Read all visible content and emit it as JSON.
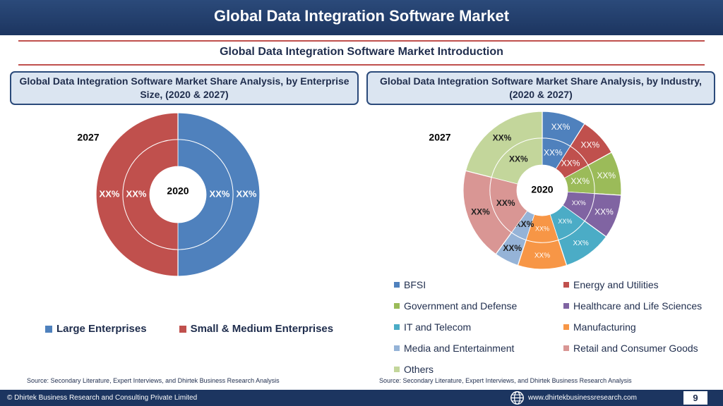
{
  "header": {
    "title": "Global Data Integration Software Market"
  },
  "subtitle": "Global Data Integration Software Market  Introduction",
  "left_box": {
    "title": "Global Data Integration Software Market  Share Analysis, by Enterprise Size, (2020 & 2027)"
  },
  "right_box": {
    "title": "Global Data Integration Software Market  Share Analysis, by Industry, (2020 & 2027)"
  },
  "chart_data": [
    {
      "type": "pie",
      "variant": "double-donut",
      "outer_ring": "2027",
      "inner_ring": "2020",
      "outer_label": "2027",
      "center_label": "2020",
      "categories": [
        "Large Enterprises",
        "Small & Medium Enterprises"
      ],
      "colors": [
        "#4f81bd",
        "#c0504d"
      ],
      "series": [
        {
          "values": [
            50,
            50
          ],
          "labels": [
            "XX%",
            "XX%"
          ]
        },
        {
          "values": [
            50,
            50
          ],
          "labels": [
            "XX%",
            "XX%"
          ]
        }
      ],
      "legend_position": "bottom"
    },
    {
      "type": "pie",
      "variant": "double-donut",
      "outer_ring": "2027",
      "inner_ring": "2020",
      "outer_label": "2027",
      "center_label": "2020",
      "categories": [
        "BFSI",
        "Energy and Utilities",
        "Government and Defense",
        "Healthcare and Life Sciences",
        "IT and Telecom",
        "Manufacturing",
        "Media and Entertainment",
        "Retail and Consumer Goods",
        "Others"
      ],
      "colors": [
        "#4f81bd",
        "#c0504d",
        "#9bbb59",
        "#8064a2",
        "#4bacc6",
        "#f79646",
        "#95b3d7",
        "#d99694",
        "#c3d69b"
      ],
      "series": [
        {
          "values": [
            9,
            8,
            9,
            9,
            10,
            10,
            5,
            19,
            21
          ],
          "labels": [
            "XX%",
            "XX%",
            "XX%",
            "XX%",
            "XX%",
            "XX%",
            "XX%",
            "XX%",
            "XX%"
          ]
        },
        {
          "values": [
            9,
            8,
            9,
            9,
            10,
            10,
            5,
            19,
            21
          ],
          "labels": [
            "XX%",
            "XX%",
            "XX%",
            "XX%",
            "XX%",
            "XX%",
            "XX%",
            "XX%",
            "XX%"
          ]
        }
      ],
      "legend_position": "bottom"
    }
  ],
  "left_legend": [
    {
      "label": "Large Enterprises",
      "color": "#4f81bd"
    },
    {
      "label": "Small & Medium Enterprises",
      "color": "#c0504d"
    }
  ],
  "right_legend": [
    {
      "label": "BFSI",
      "color": "#4f81bd"
    },
    {
      "label": "Energy and Utilities",
      "color": "#c0504d"
    },
    {
      "label": "Government and Defense",
      "color": "#9bbb59"
    },
    {
      "label": "Healthcare and Life Sciences",
      "color": "#8064a2"
    },
    {
      "label": "IT and Telecom",
      "color": "#4bacc6"
    },
    {
      "label": "Manufacturing",
      "color": "#f79646"
    },
    {
      "label": "Media and Entertainment",
      "color": "#95b3d7"
    },
    {
      "label": "Retail and Consumer Goods",
      "color": "#d99694"
    },
    {
      "label": "Others",
      "color": "#c3d69b"
    }
  ],
  "sources": {
    "left": "Source: Secondary Literature, Expert Interviews, and Dhirtek Business Research Analysis",
    "right": "Source: Secondary Literature, Expert Interviews, and Dhirtek Business Research Analysis"
  },
  "footer": {
    "copyright": "© Dhirtek Business Research and Consulting Private Limited",
    "website": "www.dhirtekbusinessresearch.com",
    "page_number": "9",
    "icon": "globe-icon"
  }
}
